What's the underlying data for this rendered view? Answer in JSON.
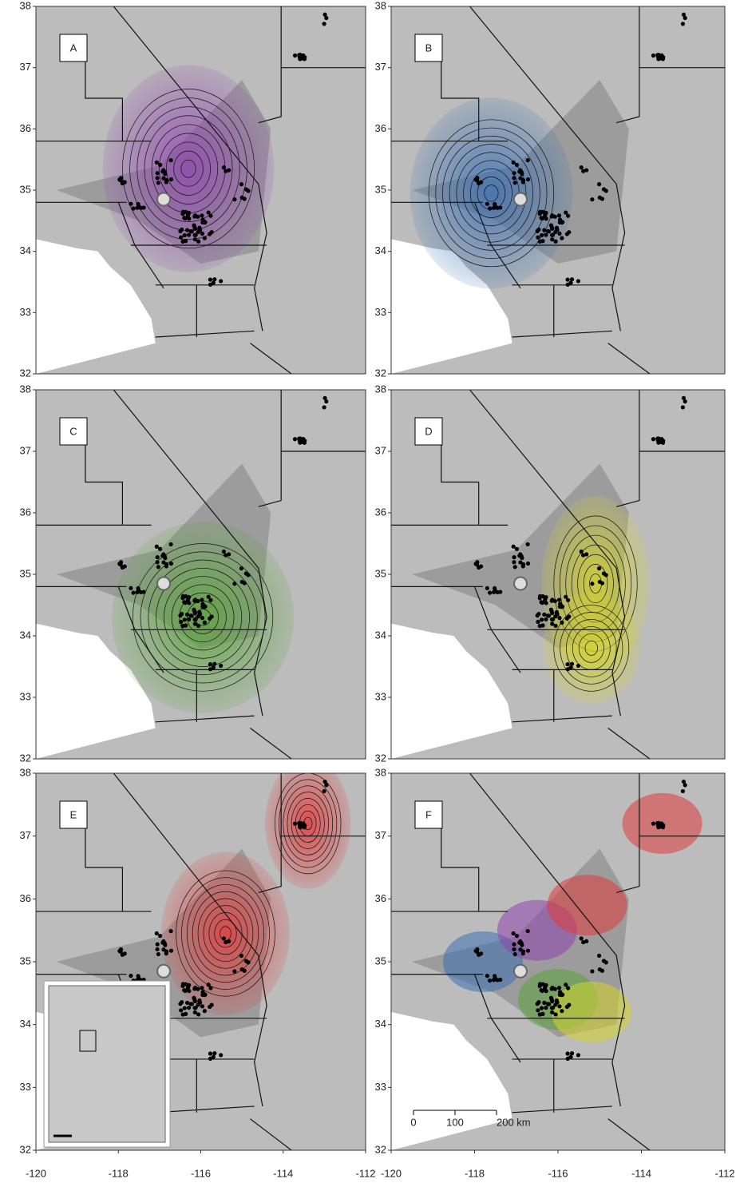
{
  "panels": [
    {
      "label": "A",
      "color": "#8e44ad"
    },
    {
      "label": "B",
      "color": "#3d6fb0"
    },
    {
      "label": "C",
      "color": "#5aa33a"
    },
    {
      "label": "D",
      "color": "#d4d42a"
    },
    {
      "label": "E",
      "color": "#e03b3b"
    },
    {
      "label": "F",
      "color": "#e03b3b"
    }
  ],
  "longitude_ticks": [
    -120,
    -118,
    -116,
    -114,
    -112
  ],
  "latitude_ticks": [
    32,
    33,
    34,
    35,
    36,
    37,
    38
  ],
  "scale_bar": {
    "labels": [
      "0",
      "100",
      "200 km"
    ]
  }
}
